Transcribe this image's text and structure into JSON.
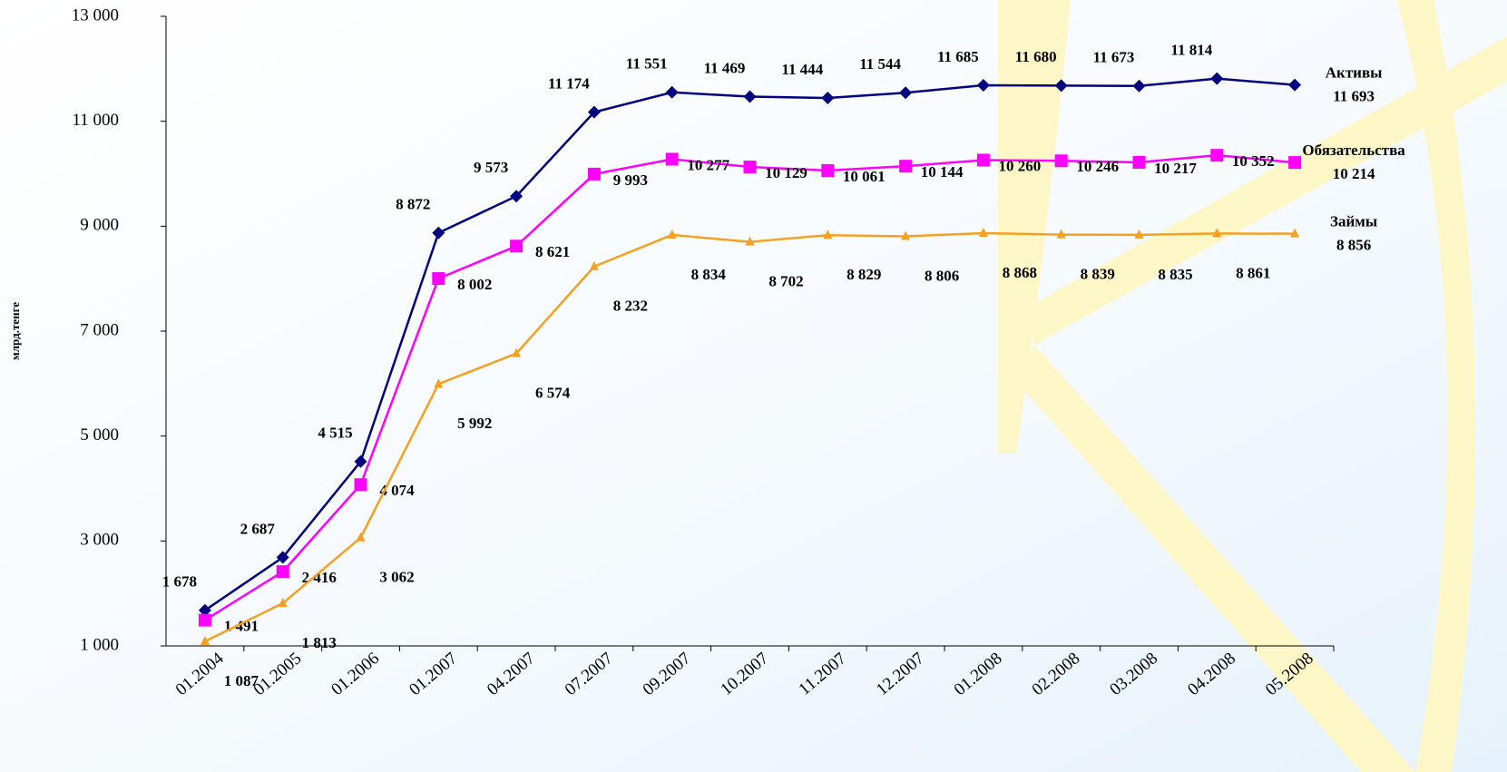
{
  "chart_data": {
    "type": "line",
    "y_label": "млрд.тенге",
    "categories": [
      "01.2004",
      "01.2005",
      "01.2006",
      "01.2007",
      "04.2007",
      "07.2007",
      "09.2007",
      "10.2007",
      "11.2007",
      "12.2007",
      "01.2008",
      "02.2008",
      "03.2008",
      "04.2008",
      "05.2008"
    ],
    "ylim": [
      1000,
      13000
    ],
    "yticks": [
      {
        "value": 1000,
        "label": "1 000"
      },
      {
        "value": 3000,
        "label": "3 000"
      },
      {
        "value": 5000,
        "label": "5 000"
      },
      {
        "value": 7000,
        "label": "7 000"
      },
      {
        "value": 9000,
        "label": "9 000"
      },
      {
        "value": 11000,
        "label": "11 000"
      },
      {
        "value": 13000,
        "label": "13 000"
      }
    ],
    "series": [
      {
        "name": "Активы",
        "color": "#000080",
        "marker": "diamond",
        "values": [
          1678,
          2687,
          4515,
          8872,
          9573,
          11174,
          11551,
          11469,
          11444,
          11544,
          11685,
          11680,
          11673,
          11814,
          11693
        ],
        "value_labels": [
          "1 678",
          "2 687",
          "4 515",
          "8 872",
          "9 573",
          "11 174",
          "11 551",
          "11 469",
          "11 444",
          "11 544",
          "11 685",
          "11 680",
          "11 673",
          "11 814",
          "11 693"
        ]
      },
      {
        "name": "Обязательства",
        "color": "#ff00ff",
        "marker": "square",
        "values": [
          1491,
          2416,
          4074,
          8002,
          8621,
          9993,
          10277,
          10129,
          10061,
          10144,
          10260,
          10246,
          10217,
          10352,
          10214
        ],
        "value_labels": [
          "1 491",
          "2 416",
          "4 074",
          "8 002",
          "8 621",
          "9 993",
          "10 277",
          "10 129",
          "10 061",
          "10 144",
          "10 260",
          "10 246",
          "10 217",
          "10 352",
          "10 214"
        ]
      },
      {
        "name": "Займы",
        "color": "#f5a020",
        "marker": "triangle",
        "values": [
          1087,
          1813,
          3062,
          5992,
          6574,
          8232,
          8834,
          8702,
          8829,
          8806,
          8868,
          8839,
          8835,
          8861,
          8856
        ],
        "value_labels": [
          "1 087",
          "1 813",
          "3 062",
          "5 992",
          "6 574",
          "8 232",
          "8 834",
          "8 702",
          "8 829",
          "8 806",
          "8 868",
          "8 839",
          "8 835",
          "8 861",
          "8 856"
        ]
      }
    ]
  }
}
